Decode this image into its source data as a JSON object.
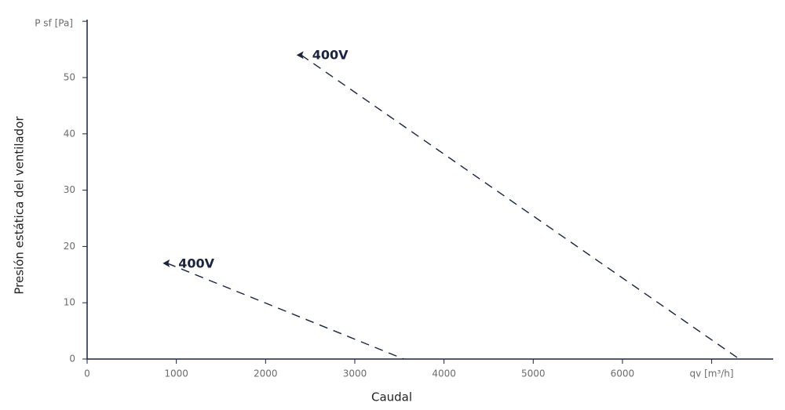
{
  "chart_data": {
    "type": "line",
    "x_label": "Caudal",
    "y_label": "Presión estática del ventilador",
    "xlim": [
      0,
      7690
    ],
    "ylim": [
      0,
      60.3
    ],
    "xticks": [
      0,
      1000,
      2000,
      3000,
      4000,
      5000,
      6000,
      {
        "value": 7000,
        "label": "qv [m³/h]"
      }
    ],
    "yticks": [
      0,
      10,
      20,
      30,
      40,
      50,
      {
        "value": 60,
        "label": "P sf [Pa]"
      }
    ],
    "series": [
      {
        "name": "400V",
        "color": "#1a2340",
        "x": [
          2400,
          7310
        ],
        "values": [
          54,
          0
        ]
      },
      {
        "name": "400V",
        "color": "#1a2340",
        "x": [
          900,
          3550
        ],
        "values": [
          17,
          0
        ]
      }
    ]
  }
}
